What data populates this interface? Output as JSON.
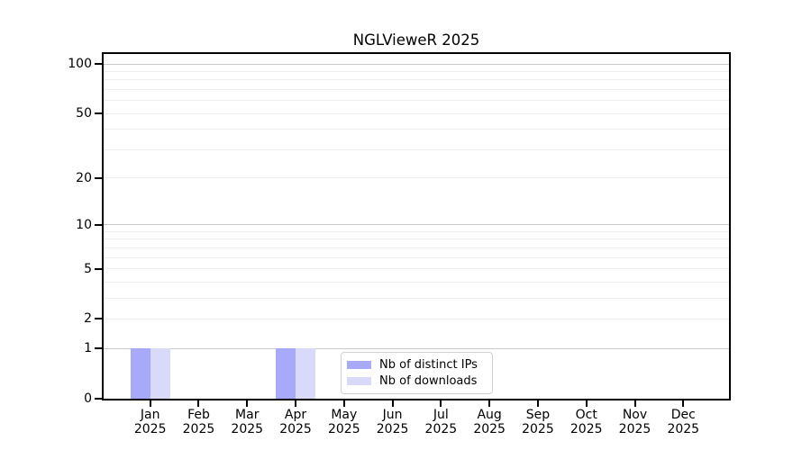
{
  "title": "NGLVieweR 2025",
  "chart_data": {
    "type": "bar",
    "title": "NGLVieweR 2025",
    "x_months": [
      "Jan",
      "Feb",
      "Mar",
      "Apr",
      "May",
      "Jun",
      "Jul",
      "Aug",
      "Sep",
      "Oct",
      "Nov",
      "Dec"
    ],
    "x_year": "2025",
    "series": [
      {
        "name": "Nb of distinct IPs",
        "color": "#a9a9fa",
        "values": [
          1,
          0,
          0,
          1,
          0,
          0,
          0,
          0,
          0,
          0,
          0,
          0
        ]
      },
      {
        "name": "Nb of downloads",
        "color": "#d9d9fa",
        "values": [
          1,
          0,
          0,
          1,
          0,
          0,
          0,
          0,
          0,
          0,
          0,
          0
        ]
      }
    ],
    "yscale": "log10(1+y)",
    "ylim": [
      0,
      115
    ],
    "yticks": [
      0,
      1,
      2,
      5,
      10,
      20,
      50,
      100
    ],
    "major_gridlines": [
      1,
      10,
      100
    ],
    "minor_gridlines": [
      2,
      3,
      4,
      5,
      6,
      7,
      8,
      9,
      20,
      30,
      40,
      50,
      60,
      70,
      80,
      90
    ],
    "grid": true,
    "legend_position": "lower center",
    "colors": {
      "axis": "#000000",
      "major_grid": "#c9c9c9",
      "minor_grid": "#ededed",
      "text": "#000000",
      "background": "#ffffff"
    }
  }
}
